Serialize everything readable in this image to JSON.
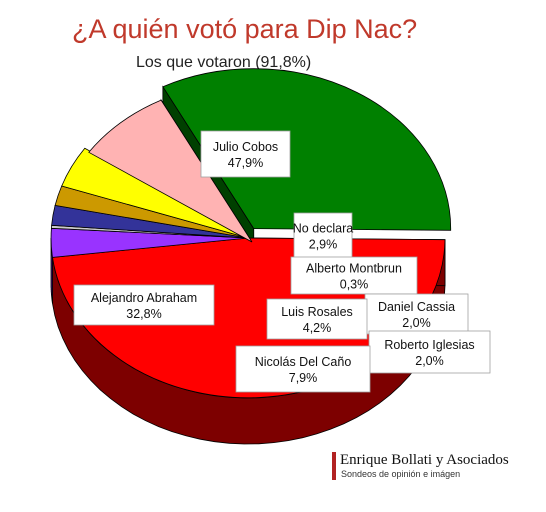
{
  "chart_data": {
    "type": "pie",
    "title": "¿A quién votó para Dip Nac?",
    "subtitle": "Los que votaron (91,8%)",
    "slices": [
      {
        "label": "Julio Cobos",
        "value_text": "47,9%",
        "value": 47.9,
        "color": "#ff0000",
        "side_color": "#7d0000"
      },
      {
        "label": "No declara",
        "value_text": "2,9%",
        "value": 2.9,
        "color": "#9933ff",
        "side_color": "#4a1a80"
      },
      {
        "label": "Alberto Montbrun",
        "value_text": "0,3%",
        "value": 0.3,
        "color": "#cccccc",
        "side_color": "#808080"
      },
      {
        "label": "Daniel Cassia",
        "value_text": "2,0%",
        "value": 2.0,
        "color": "#333399",
        "side_color": "#1a1a4d"
      },
      {
        "label": "Roberto Iglesias",
        "value_text": "2,0%",
        "value": 2.0,
        "color": "#cc9900",
        "side_color": "#7a5b00"
      },
      {
        "label": "Luis Rosales",
        "value_text": "4,2%",
        "value": 4.2,
        "color": "#ffff00",
        "side_color": "#99991a"
      },
      {
        "label": "Nicolás Del Caño",
        "value_text": "7,9%",
        "value": 7.9,
        "color": "#ffb3b3",
        "side_color": "#8c5a5a"
      },
      {
        "label": "Alejandro Abraham",
        "value_text": "32,8%",
        "value": 32.8,
        "color": "#008000",
        "side_color": "#004000"
      }
    ]
  },
  "colors": {
    "title": "#c0392b",
    "brand_bar": "#b22222",
    "outline": "#000000"
  },
  "branding": {
    "name": "Enrique Bollati y Asociados",
    "tagline": "Sondeos de opinión e imágen"
  }
}
